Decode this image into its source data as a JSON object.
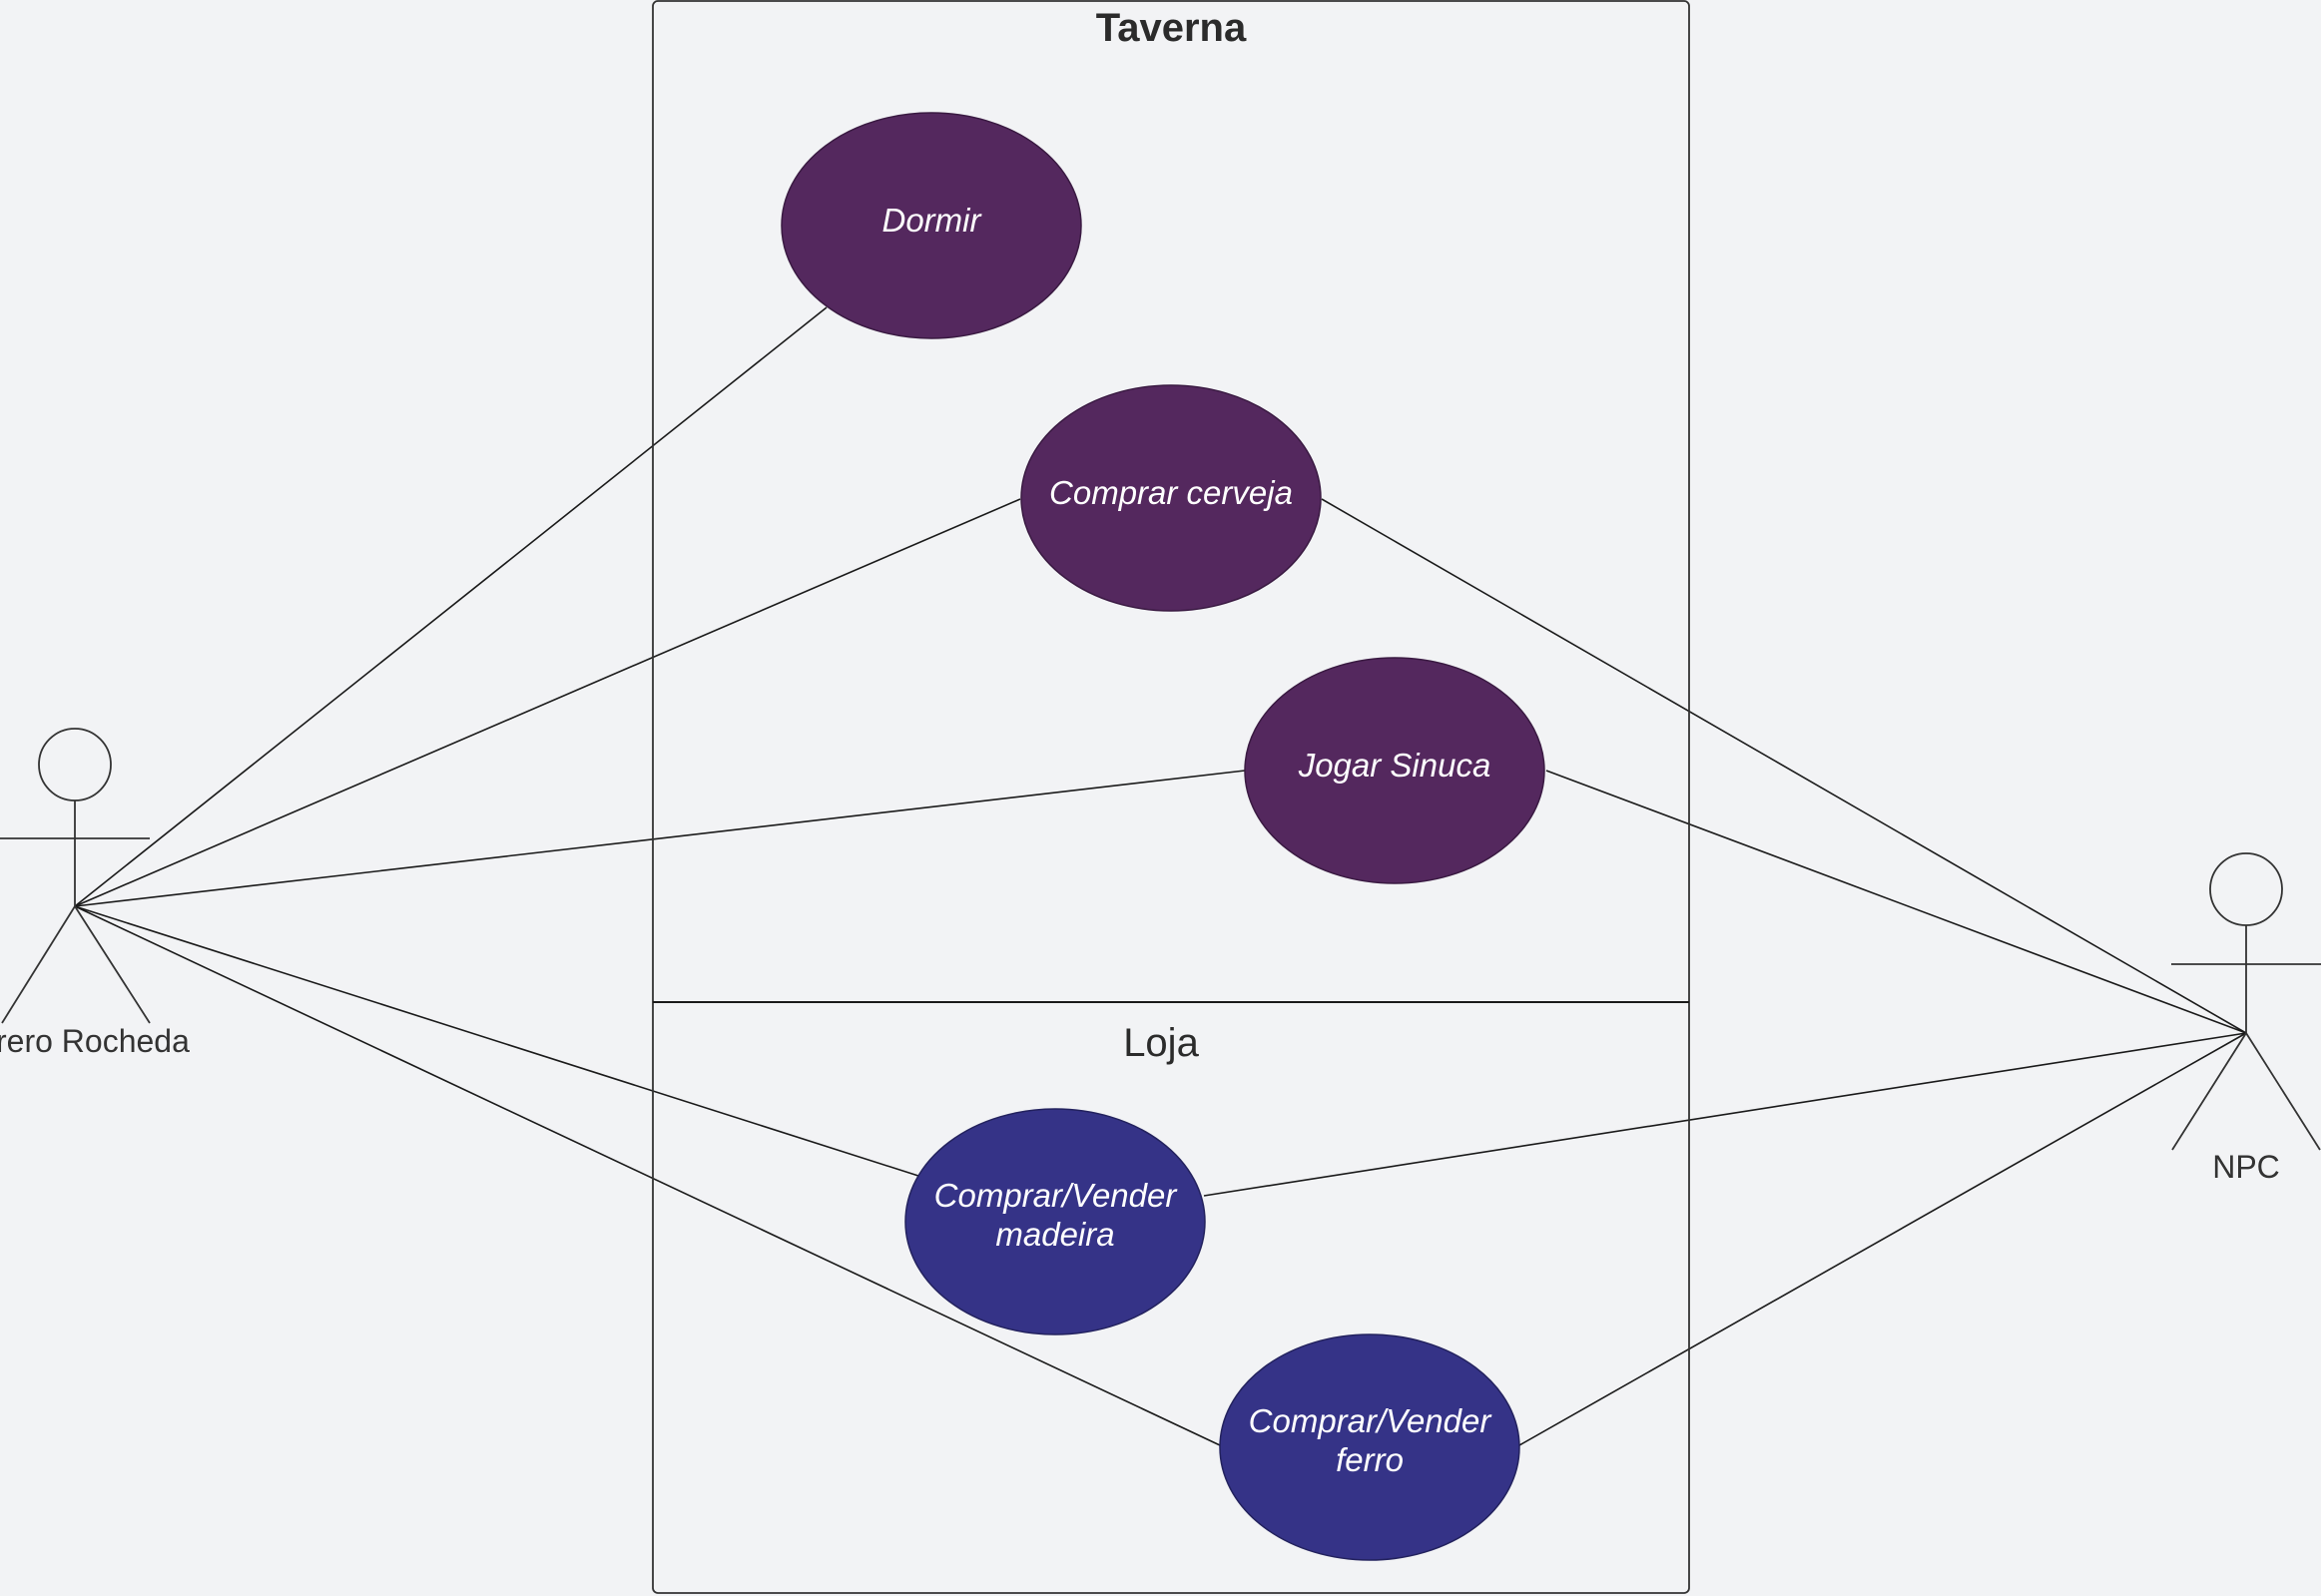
{
  "systems": [
    {
      "id": "taverna",
      "title": "Taverna"
    },
    {
      "id": "loja",
      "title": "Loja"
    }
  ],
  "use_cases": [
    {
      "id": "dormir",
      "lines": [
        "Dormir"
      ],
      "system": "taverna"
    },
    {
      "id": "comprar-cerveja",
      "lines": [
        "Comprar cerveja"
      ],
      "system": "taverna"
    },
    {
      "id": "jogar-sinuca",
      "lines": [
        "Jogar Sinuca"
      ],
      "system": "taverna"
    },
    {
      "id": "comprar-vender-madeira",
      "lines": [
        "Comprar/Vender",
        "madeira"
      ],
      "system": "loja"
    },
    {
      "id": "comprar-vender-ferro",
      "lines": [
        "Comprar/Vender",
        "ferro"
      ],
      "system": "loja"
    }
  ],
  "actors": [
    {
      "id": "ferreiro",
      "label": "rero Rocheda"
    },
    {
      "id": "npc",
      "label": "NPC"
    }
  ],
  "associations": [
    {
      "actor": "ferreiro",
      "use_case": "dormir"
    },
    {
      "actor": "ferreiro",
      "use_case": "comprar-cerveja"
    },
    {
      "actor": "ferreiro",
      "use_case": "jogar-sinuca"
    },
    {
      "actor": "ferreiro",
      "use_case": "comprar-vender-madeira"
    },
    {
      "actor": "ferreiro",
      "use_case": "comprar-vender-ferro"
    },
    {
      "actor": "npc",
      "use_case": "comprar-cerveja"
    },
    {
      "actor": "npc",
      "use_case": "jogar-sinuca"
    },
    {
      "actor": "npc",
      "use_case": "comprar-vender-madeira"
    },
    {
      "actor": "npc",
      "use_case": "comprar-vender-ferro"
    }
  ],
  "colors": {
    "background": "#f2f3f5",
    "taverna_fill": "#54285e",
    "loja_fill": "#353387",
    "stroke": "#1a1a1a"
  }
}
